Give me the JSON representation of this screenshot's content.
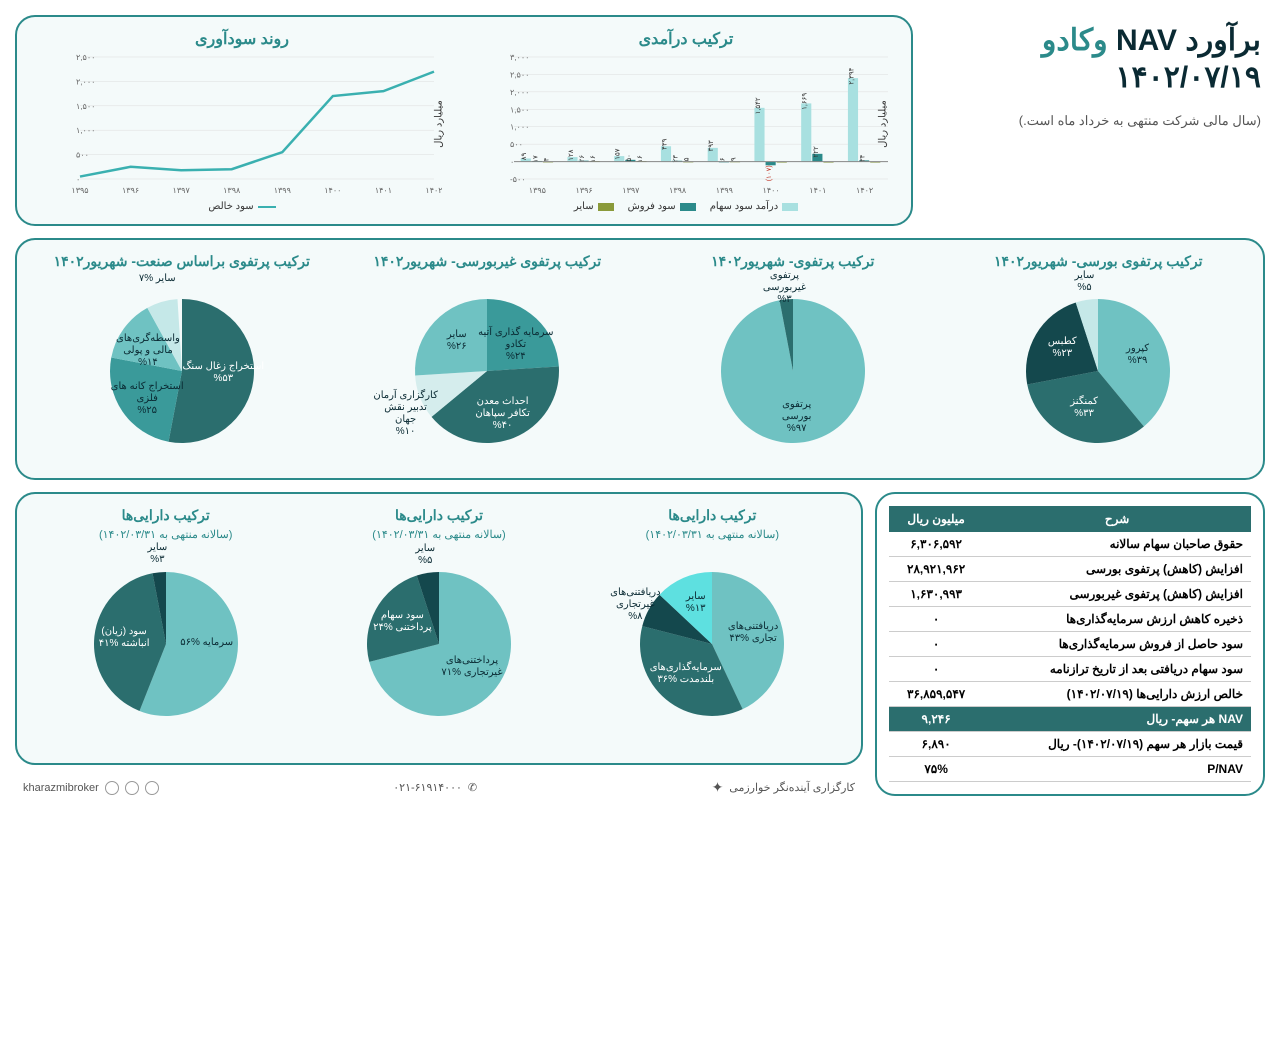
{
  "header": {
    "title_part1": "برآورد",
    "title_nav": "NAV",
    "title_part2": "وکادو",
    "date": "۱۴۰۲/۰۷/۱۹",
    "note": "(سال مالی شرکت منتهی به خرداد ماه است.)"
  },
  "profit_chart": {
    "title": "روند سودآوری",
    "ylabel": "میلیارد ریال",
    "series_name": "سود خالص",
    "line_color": "#3ab0b0",
    "categories": [
      "۱۳۹۵",
      "۱۳۹۶",
      "۱۳۹۷",
      "۱۳۹۸",
      "۱۳۹۹",
      "۱۴۰۰",
      "۱۴۰۱",
      "۱۴۰۲"
    ],
    "values": [
      50,
      250,
      180,
      200,
      550,
      1700,
      1800,
      2200
    ],
    "ylim": [
      0,
      2500
    ],
    "ytick_step": 500,
    "yticks": [
      "۰",
      "۵۰۰",
      "۱,۰۰۰",
      "۱,۵۰۰",
      "۲,۰۰۰",
      "۲,۵۰۰"
    ]
  },
  "revenue_chart": {
    "title": "ترکیب درآمدی",
    "ylabel": "میلیارد ریال",
    "categories": [
      "۱۳۹۵",
      "۱۳۹۶",
      "۱۳۹۷",
      "۱۳۹۸",
      "۱۳۹۹",
      "۱۴۰۰",
      "۱۴۰۱",
      "۱۴۰۲"
    ],
    "ylim": [
      -500,
      3000
    ],
    "ytick_step": 500,
    "yticks": [
      "۵۰۰-",
      "۰",
      "۵۰۰",
      "۱,۰۰۰",
      "۱,۵۰۰",
      "۲,۰۰۰",
      "۲,۵۰۰",
      "۳,۰۰۰"
    ],
    "series": [
      {
        "name": "درآمد سود سهام",
        "color": "#a8e0e0",
        "values": [
          89,
          128,
          157,
          439,
          393,
          1542,
          1669,
          2394
        ],
        "labels": [
          "۸۹",
          "۱۲۸",
          "۱۵۷",
          "۴۳۹",
          "۳۹۳",
          "۱,۵۴۲",
          "۱,۶۶۹",
          "۲,۳۹۴"
        ]
      },
      {
        "name": "سود فروش",
        "color": "#2b8a8a",
        "values": [
          17,
          26,
          50,
          23,
          6,
          -107,
          222,
          34
        ],
        "labels": [
          "۱۷",
          "۲۶",
          "۵۰",
          "۲۳",
          "۶",
          "(۱۰۷)",
          "۲۲۲",
          "۳۴"
        ]
      },
      {
        "name": "سایر",
        "color": "#8a9a3a",
        "values": [
          4,
          16,
          16,
          5,
          9,
          0,
          0,
          0
        ],
        "labels": [
          "۴",
          "۱۶",
          "۱۶",
          "۵",
          "۹",
          "",
          "",
          ""
        ]
      }
    ]
  },
  "pies_row1": [
    {
      "title": "ترکیب پرتفوی بورسی- شهریور۱۴۰۲",
      "slices": [
        {
          "label": "کپرور",
          "pct": 39,
          "color": "#6fc2c2",
          "lab": "کپرور\n%۳۹"
        },
        {
          "label": "کمنگنز",
          "pct": 33,
          "color": "#2b6e6e",
          "lab": "کمنگنز\n%۳۳"
        },
        {
          "label": "کطبس",
          "pct": 23,
          "color": "#14484d",
          "lab": "کطبس\n%۲۳"
        },
        {
          "label": "سایر",
          "pct": 5,
          "color": "#c5e8e8",
          "lab": "سایر\n%۵"
        }
      ]
    },
    {
      "title": "ترکیب پرتفوی- شهریور۱۴۰۲",
      "slices": [
        {
          "label": "پرتفوی بورسی",
          "pct": 97,
          "color": "#6fc2c2",
          "lab": "پرتفوی\nبورسی\n%۹۷"
        },
        {
          "label": "پرتفوی غیربورسی",
          "pct": 3,
          "color": "#2b6e6e",
          "lab": "پرتفوی\nغیربورسی\n%۳"
        }
      ]
    },
    {
      "title": "ترکیب پرتفوی غیربورسی- شهریور۱۴۰۲",
      "slices": [
        {
          "label": "سرمایه گذاری آتیه تکادو",
          "pct": 24,
          "color": "#3a9a9a",
          "lab": "سرمایه گذاری آتیه\nتکادو\n%۲۴"
        },
        {
          "label": "احداث معدن تکافر سپاهان",
          "pct": 40,
          "color": "#2b6e6e",
          "lab": "احداث معدن\nتکافر سپاهان\n%۴۰"
        },
        {
          "label": "کارگزاری آرمان تدبیر نقش جهان",
          "pct": 10,
          "color": "#d5eded",
          "lab": "کارگزاری آرمان\nتدبیر نقش\nجهان\n%۱۰"
        },
        {
          "label": "سایر",
          "pct": 26,
          "color": "#6fc2c2",
          "lab": "سایر\n%۲۶"
        }
      ]
    },
    {
      "title": "ترکیب پرتفوی براساس صنعت- شهریور۱۴۰۲",
      "slices": [
        {
          "label": "استخراج زغال سنگ",
          "pct": 53,
          "color": "#2b6e6e",
          "lab": "استخراج زغال سنگ\n%۵۳"
        },
        {
          "label": "استخراج کانه های فلزی",
          "pct": 25,
          "color": "#3a9a9a",
          "lab": "استخراج کانه های\nفلزی\n%۲۵"
        },
        {
          "label": "واسطه‌گری‌های مالی و پولی",
          "pct": 14,
          "color": "#6fc2c2",
          "lab": "واسطه‌گری‌های\nمالی و پولی\n%۱۴"
        },
        {
          "label": "سایر",
          "pct": 7,
          "color": "#c5e8e8",
          "lab": "سایر %۷"
        }
      ]
    }
  ],
  "pies_row2": [
    {
      "title": "ترکیب دارایی‌ها",
      "sub": "(سالانه منتهی به ۱۴۰۲/۰۳/۳۱)",
      "slices": [
        {
          "label": "دریافتنی‌های تجاری",
          "pct": 43,
          "color": "#6fc2c2",
          "lab": "دریافتنی‌های\nتجاری %۴۳"
        },
        {
          "label": "سرمایه‌گذاری‌های بلندمدت",
          "pct": 36,
          "color": "#2b6e6e",
          "lab": "سرمایه‌گذاری‌های\nبلندمدت %۳۶"
        },
        {
          "label": "دریافتنی‌های غیرتجاری",
          "pct": 8,
          "color": "#14484d",
          "lab": "دریافتنی‌های\nغیرتجاری\n%۸"
        },
        {
          "label": "سایر",
          "pct": 13,
          "color": "#5ee0e0",
          "lab": "سایر\n%۱۳"
        }
      ]
    },
    {
      "title": "ترکیب دارایی‌ها",
      "sub": "(سالانه منتهی به ۱۴۰۲/۰۳/۳۱)",
      "slices": [
        {
          "label": "پرداختنی‌های غیرتجاری",
          "pct": 71,
          "color": "#6fc2c2",
          "lab": "پرداختنی‌های\nغیرتجاری %۷۱"
        },
        {
          "label": "سود سهام پرداختنی",
          "pct": 24,
          "color": "#2b6e6e",
          "lab": "سود سهام\nپرداختنی %۲۴"
        },
        {
          "label": "سایر",
          "pct": 5,
          "color": "#14484d",
          "lab": "سایر\n%۵"
        }
      ]
    },
    {
      "title": "ترکیب دارایی‌ها",
      "sub": "(سالانه منتهی به ۱۴۰۲/۰۳/۳۱)",
      "slices": [
        {
          "label": "سرمایه",
          "pct": 56,
          "color": "#6fc2c2",
          "lab": "سرمایه %۵۶"
        },
        {
          "label": "سود (زیان) انباشته",
          "pct": 41,
          "color": "#2b6e6e",
          "lab": "سود (زیان)\nانباشته %۴۱"
        },
        {
          "label": "سایر",
          "pct": 3,
          "color": "#14484d",
          "lab": "سایر\n%۳"
        }
      ]
    }
  ],
  "nav_table": {
    "headers": [
      "شرح",
      "میلیون ریال"
    ],
    "rows": [
      {
        "label": "حقوق صاحبان سهام سالانه",
        "value": "۶,۳۰۶,۵۹۲"
      },
      {
        "label": "افزایش (کاهش) پرتفوی بورسی",
        "value": "۲۸,۹۲۱,۹۶۲"
      },
      {
        "label": "افزایش (کاهش) پرتفوی غیربورسی",
        "value": "۱,۶۳۰,۹۹۳"
      },
      {
        "label": "ذخیره کاهش ارزش سرمایه‌گذاری‌ها",
        "value": "۰"
      },
      {
        "label": "سود حاصل از فروش سرمایه‌گذاری‌ها",
        "value": "۰"
      },
      {
        "label": "سود سهام دریافتی بعد از تاریخ ترازنامه",
        "value": "۰"
      },
      {
        "label": "خالص ارزش دارایی‌ها (۱۴۰۲/۰۷/۱۹)",
        "value": "۳۶,۸۵۹,۵۴۷"
      },
      {
        "label": "NAV هر سهم- ریال",
        "value": "۹,۲۴۶",
        "hl": true
      },
      {
        "label": "قیمت بازار هر سهم (۱۴۰۲/۰۷/۱۹)- ریال",
        "value": "۶,۸۹۰"
      },
      {
        "label": "P/NAV",
        "value": "۷۵%"
      }
    ]
  },
  "footer": {
    "brand": "کارگزاری آینده‌نگر خوارزمی",
    "phone": "۰۲۱-۶۱۹۱۴۰۰۰",
    "social": "kharazmibroker"
  }
}
